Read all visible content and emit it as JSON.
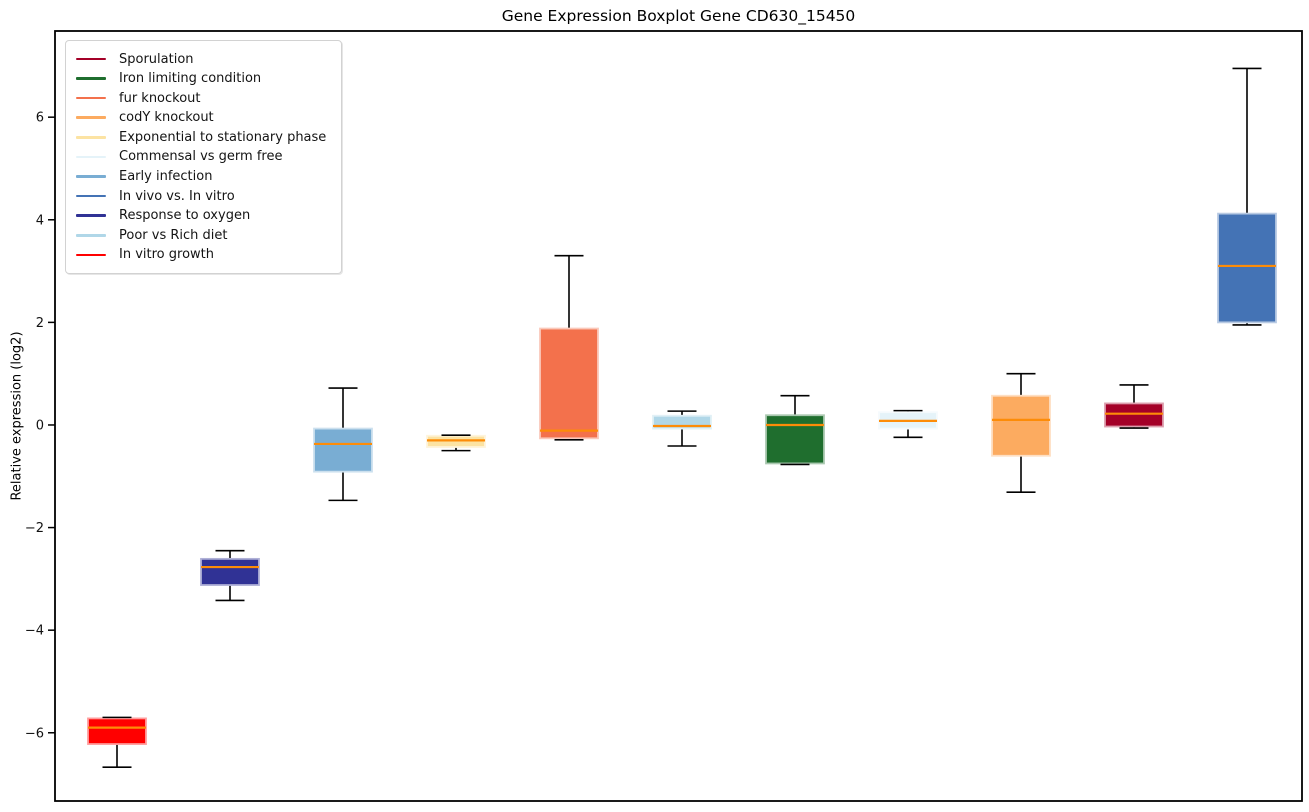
{
  "chart_data": {
    "type": "boxplot",
    "title": "Gene Expression Boxplot Gene CD630_15450",
    "ylabel": "Relative expression (log2)",
    "xlabel": "",
    "yticks": [
      6,
      4,
      2,
      0,
      -2,
      -4,
      -6
    ],
    "ylim": [
      -7.33,
      7.68
    ],
    "grid": false,
    "legend_position": "upper left",
    "median_color": "#fd8c08",
    "whisker_color": "#000000",
    "legend": [
      {
        "label": "Sporulation",
        "color": "#a40028"
      },
      {
        "label": "Iron limiting condition",
        "color": "#1f6e2e"
      },
      {
        "label": "fur knockout",
        "color": "#f3714c"
      },
      {
        "label": "codY knockout",
        "color": "#fcab60"
      },
      {
        "label": "Exponential to stationary phase",
        "color": "#fce3a3"
      },
      {
        "label": "Commensal vs germ free",
        "color": "#e5f3f9"
      },
      {
        "label": "Early infection",
        "color": "#79add3"
      },
      {
        "label": "In vivo vs. In vitro",
        "color": "#4473b5"
      },
      {
        "label": "Response to oxygen",
        "color": "#303295"
      },
      {
        "label": "Poor vs Rich diet",
        "color": "#b0d7e8"
      },
      {
        "label": "In vitro growth",
        "color": "#ff0000"
      }
    ],
    "series": [
      {
        "name": "In vitro growth",
        "color": "#ff0000",
        "whisker_low": -6.67,
        "q1": -6.22,
        "median": -5.9,
        "q3": -5.72,
        "whisker_high": -5.7
      },
      {
        "name": "Response to oxygen",
        "color": "#303295",
        "whisker_low": -3.42,
        "q1": -3.12,
        "median": -2.77,
        "q3": -2.61,
        "whisker_high": -2.45
      },
      {
        "name": "Early infection",
        "color": "#79add3",
        "whisker_low": -1.47,
        "q1": -0.91,
        "median": -0.37,
        "q3": -0.07,
        "whisker_high": 0.72
      },
      {
        "name": "Exponential to stationary phase",
        "color": "#fce3a3",
        "whisker_low": -0.5,
        "q1": -0.43,
        "median": -0.3,
        "q3": -0.21,
        "whisker_high": -0.2
      },
      {
        "name": "fur knockout",
        "color": "#f3714c",
        "whisker_low": -0.29,
        "q1": -0.26,
        "median": -0.11,
        "q3": 1.88,
        "whisker_high": 3.3
      },
      {
        "name": "Poor vs Rich diet",
        "color": "#b0d7e8",
        "whisker_low": -0.41,
        "q1": -0.07,
        "median": -0.02,
        "q3": 0.18,
        "whisker_high": 0.27
      },
      {
        "name": "Iron limiting condition",
        "color": "#1f6e2e",
        "whisker_low": -0.77,
        "q1": -0.75,
        "median": 0.0,
        "q3": 0.19,
        "whisker_high": 0.57
      },
      {
        "name": "Commensal vs germ free",
        "color": "#e5f3f9",
        "whisker_low": -0.24,
        "q1": -0.07,
        "median": 0.08,
        "q3": 0.25,
        "whisker_high": 0.28
      },
      {
        "name": "codY knockout",
        "color": "#fcab60",
        "whisker_low": -1.31,
        "q1": -0.6,
        "median": 0.1,
        "q3": 0.57,
        "whisker_high": 1.0
      },
      {
        "name": "Sporulation",
        "color": "#a40028",
        "whisker_low": -0.06,
        "q1": -0.03,
        "median": 0.22,
        "q3": 0.42,
        "whisker_high": 0.78
      },
      {
        "name": "In vivo vs. In vitro",
        "color": "#4473b5",
        "whisker_low": 1.95,
        "q1": 2.0,
        "median": 3.1,
        "q3": 4.12,
        "whisker_high": 6.95
      }
    ]
  }
}
